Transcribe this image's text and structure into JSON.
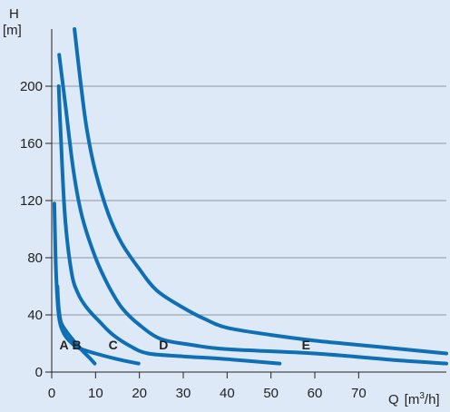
{
  "chart_data": {
    "type": "line",
    "ylabel_main": "H",
    "ylabel_unit": "[m]",
    "xlabel_main": "Q",
    "xlabel_unit": "[m",
    "xlabel_sup": "3",
    "xlabel_end": "/h]",
    "xlim": [
      0,
      90
    ],
    "ylim": [
      0,
      240
    ],
    "x_ticks": [
      0,
      10,
      20,
      30,
      40,
      50,
      60,
      70
    ],
    "y_ticks": [
      0,
      40,
      80,
      120,
      160,
      200
    ],
    "grid": true,
    "colors": {
      "curve": "#0f6fb5",
      "background": "#dde9f6",
      "grid": "#8f97a0"
    },
    "series": [
      {
        "name": "A",
        "label_at": [
          2.8,
          19
        ],
        "points": [
          [
            1.3,
            60
          ],
          [
            1.6,
            45
          ],
          [
            2.1,
            35
          ],
          [
            3,
            30
          ],
          [
            5,
            22
          ],
          [
            7,
            15
          ],
          [
            8.6,
            10
          ],
          [
            9.8,
            6
          ]
        ]
      },
      {
        "name": "B",
        "label_at": [
          5.7,
          19
        ],
        "points": [
          [
            0.6,
            118
          ],
          [
            1,
            70
          ],
          [
            1.6,
            40
          ],
          [
            2.6,
            28
          ],
          [
            4,
            22
          ],
          [
            6,
            17
          ],
          [
            10,
            13
          ],
          [
            15,
            9
          ],
          [
            19.8,
            6
          ]
        ]
      },
      {
        "name": "C",
        "label_at": [
          14,
          19
        ],
        "points": [
          [
            1.6,
            200
          ],
          [
            2,
            170
          ],
          [
            3,
            110
          ],
          [
            4.5,
            70
          ],
          [
            6,
            55
          ],
          [
            8,
            45
          ],
          [
            11,
            35
          ],
          [
            14,
            26
          ],
          [
            18,
            18
          ],
          [
            22,
            13
          ],
          [
            30,
            11
          ],
          [
            40,
            9
          ],
          [
            52,
            6
          ]
        ]
      },
      {
        "name": "D",
        "label_at": [
          25.5,
          19
        ],
        "points": [
          [
            1.7,
            222
          ],
          [
            3,
            190
          ],
          [
            5,
            140
          ],
          [
            7,
            108
          ],
          [
            10,
            80
          ],
          [
            13,
            60
          ],
          [
            16,
            45
          ],
          [
            20,
            33
          ],
          [
            25,
            23
          ],
          [
            32,
            19
          ],
          [
            40,
            16
          ],
          [
            60,
            13
          ],
          [
            80,
            8
          ],
          [
            90,
            6
          ]
        ]
      },
      {
        "name": "E",
        "label_at": [
          58,
          19
        ],
        "points": [
          [
            5.2,
            240
          ],
          [
            6.5,
            205
          ],
          [
            8,
            170
          ],
          [
            10,
            140
          ],
          [
            13,
            110
          ],
          [
            16,
            90
          ],
          [
            20,
            72
          ],
          [
            24,
            57
          ],
          [
            30,
            45
          ],
          [
            35,
            37
          ],
          [
            40,
            31
          ],
          [
            50,
            26
          ],
          [
            60,
            22
          ],
          [
            70,
            19
          ],
          [
            80,
            16
          ],
          [
            90,
            13
          ]
        ]
      }
    ]
  }
}
